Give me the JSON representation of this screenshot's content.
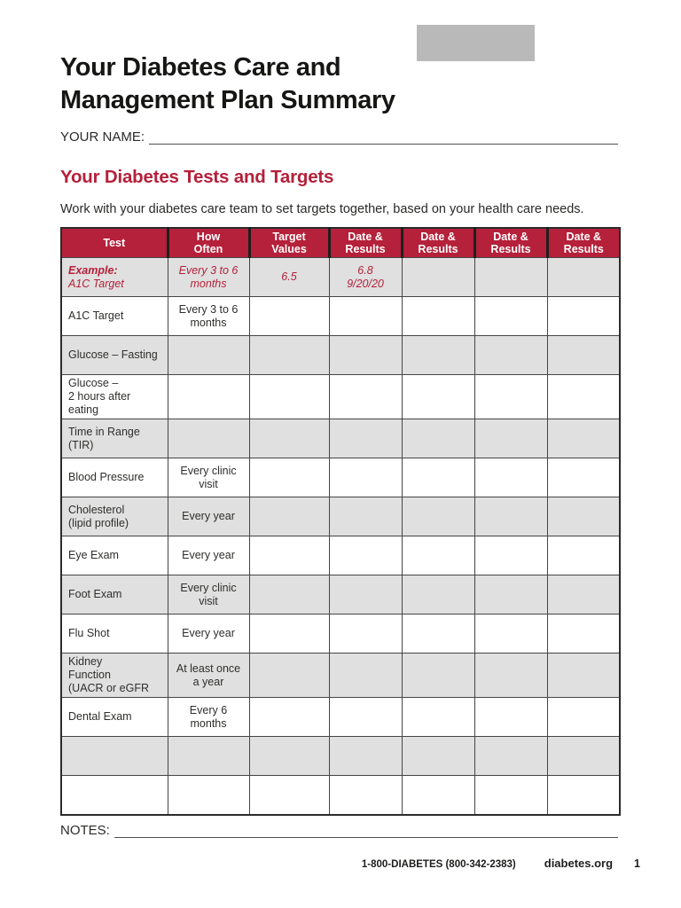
{
  "header": {
    "title_line1": "Your Diabetes Care and",
    "title_line2": "Management Plan Summary",
    "name_label": "YOUR NAME:"
  },
  "section": {
    "heading": "Your Diabetes Tests and Targets",
    "intro": "Work with your diabetes care team to set targets together, based on your health care needs."
  },
  "colors": {
    "accent_red": "#b5203a",
    "row_gray": "#e0e0e0",
    "logo_gray": "#b9b9b9",
    "header_text": "#ffffff"
  },
  "table": {
    "col_names": [
      "cell-test",
      "cell-how-often",
      "cell-target-values",
      "cell-date-results",
      "cell-date-results",
      "cell-date-results",
      "cell-date-results"
    ],
    "headers": [
      {
        "id": "test",
        "lines": [
          "Test"
        ]
      },
      {
        "id": "how-often",
        "lines": [
          "How",
          "Often"
        ]
      },
      {
        "id": "target-values",
        "lines": [
          "Target",
          "Values"
        ]
      },
      {
        "id": "date-results-1",
        "lines": [
          "Date &",
          "Results"
        ]
      },
      {
        "id": "date-results-2",
        "lines": [
          "Date &",
          "Results"
        ]
      },
      {
        "id": "date-results-3",
        "lines": [
          "Date &",
          "Results"
        ]
      },
      {
        "id": "date-results-4",
        "lines": [
          "Date &",
          "Results"
        ]
      }
    ],
    "rows": [
      {
        "shade": "gray",
        "example": true,
        "cells": [
          [
            "Example:",
            "A1C Target"
          ],
          [
            "Every 3 to 6",
            "months"
          ],
          [
            "6.5"
          ],
          [
            "6.8",
            "9/20/20"
          ],
          [],
          [],
          []
        ]
      },
      {
        "shade": "white",
        "example": false,
        "cells": [
          [
            "A1C Target"
          ],
          [
            "Every 3 to 6",
            "months"
          ],
          [],
          [],
          [],
          [],
          []
        ]
      },
      {
        "shade": "gray",
        "example": false,
        "cells": [
          [
            "Glucose – Fasting"
          ],
          [],
          [],
          [],
          [],
          [],
          []
        ]
      },
      {
        "shade": "white",
        "example": false,
        "cells": [
          [
            "Glucose –",
            "2 hours after eating"
          ],
          [],
          [],
          [],
          [],
          [],
          []
        ]
      },
      {
        "shade": "gray",
        "example": false,
        "cells": [
          [
            "Time in Range",
            "(TIR)"
          ],
          [],
          [],
          [],
          [],
          [],
          []
        ]
      },
      {
        "shade": "white",
        "example": false,
        "cells": [
          [
            "Blood Pressure"
          ],
          [
            "Every clinic",
            "visit"
          ],
          [],
          [],
          [],
          [],
          []
        ]
      },
      {
        "shade": "gray",
        "example": false,
        "cells": [
          [
            "Cholesterol",
            "(lipid profile)"
          ],
          [
            "Every year"
          ],
          [],
          [],
          [],
          [],
          []
        ]
      },
      {
        "shade": "white",
        "example": false,
        "cells": [
          [
            "Eye Exam"
          ],
          [
            "Every year"
          ],
          [],
          [],
          [],
          [],
          []
        ]
      },
      {
        "shade": "gray",
        "example": false,
        "cells": [
          [
            "Foot Exam"
          ],
          [
            "Every clinic",
            "visit"
          ],
          [],
          [],
          [],
          [],
          []
        ]
      },
      {
        "shade": "white",
        "example": false,
        "cells": [
          [
            "Flu Shot"
          ],
          [
            "Every year"
          ],
          [],
          [],
          [],
          [],
          []
        ]
      },
      {
        "shade": "gray",
        "example": false,
        "cells": [
          [
            "Kidney",
            "Function",
            "(UACR or eGFR"
          ],
          [
            "At least once",
            "a year"
          ],
          [],
          [],
          [],
          [],
          []
        ]
      },
      {
        "shade": "white",
        "example": false,
        "cells": [
          [
            "Dental Exam"
          ],
          [
            "Every 6",
            "months"
          ],
          [],
          [],
          [],
          [],
          []
        ]
      },
      {
        "shade": "gray",
        "example": false,
        "cells": [
          [],
          [],
          [],
          [],
          [],
          [],
          []
        ]
      },
      {
        "shade": "white",
        "example": false,
        "cells": [
          [],
          [],
          [],
          [],
          [],
          [],
          []
        ]
      }
    ]
  },
  "notes": {
    "label": "NOTES:"
  },
  "footer": {
    "phone": "1-800-DIABETES (800-342-2383)",
    "site": "diabetes.org",
    "page_number": "1"
  }
}
